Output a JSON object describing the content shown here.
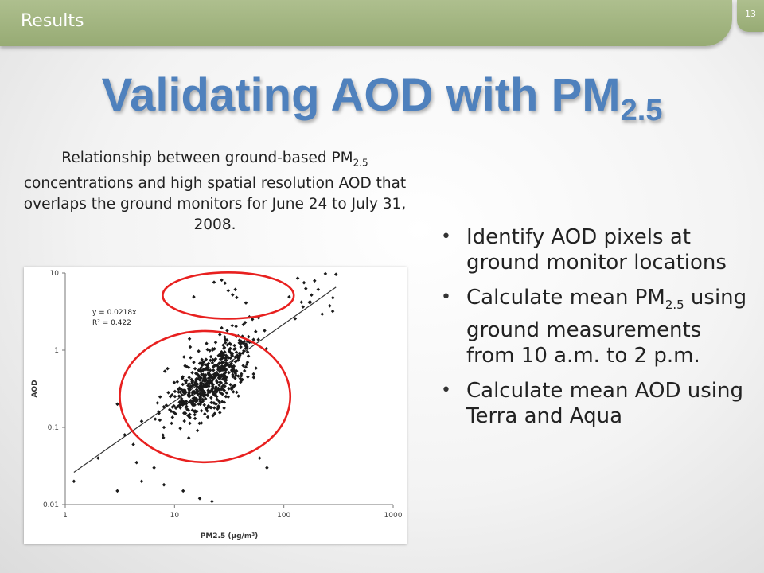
{
  "section_label": "Results",
  "page_number": "13",
  "title": {
    "main": "Validating AOD with PM",
    "sub": "2.5"
  },
  "caption": {
    "part1": "Relationship between ground-based PM",
    "sub": "2.5",
    "part2": " concentrations and high spatial resolution AOD that overlaps the ground monitors for June 24 to July 31, 2008."
  },
  "bullets": [
    {
      "text": "Identify AOD pixels at ground monitor locations"
    },
    {
      "text": "Calculate mean PM",
      "sub": "2.5",
      "rest": " using ground measurements from 10 a.m. to 2 p.m."
    },
    {
      "text": "Calculate mean AOD using Terra and Aqua"
    }
  ],
  "colors": {
    "title": "#4f81bd",
    "tab": "#9fb37e",
    "highlight_circles": "#e8201f",
    "markers": "#1a1a1a"
  },
  "chart_data": {
    "type": "scatter",
    "xlabel": "PM2.5 (μg/m³)",
    "ylabel": "AOD",
    "x_scale": "log",
    "y_scale": "log",
    "xlim": [
      1,
      1000
    ],
    "ylim": [
      0.01,
      10
    ],
    "x_ticks": [
      "1",
      "10",
      "100",
      "1000"
    ],
    "y_ticks": [
      "0.01",
      "0.1",
      "1",
      "10"
    ],
    "grid": false,
    "annotation": [
      "y = 0.0218x",
      "R² = 0.422"
    ],
    "trendline": {
      "slope": 0.0218,
      "x": [
        1.2,
        300
      ]
    },
    "highlight_circles": [
      {
        "x_center": 31,
        "y_center": 5.1,
        "x_radius_decades": 0.6,
        "y_radius_decades": 0.3
      },
      {
        "x_center": 19,
        "y_center": 0.25,
        "x_radius_decades": 0.78,
        "y_radius_decades": 0.85
      }
    ],
    "points": []
  }
}
